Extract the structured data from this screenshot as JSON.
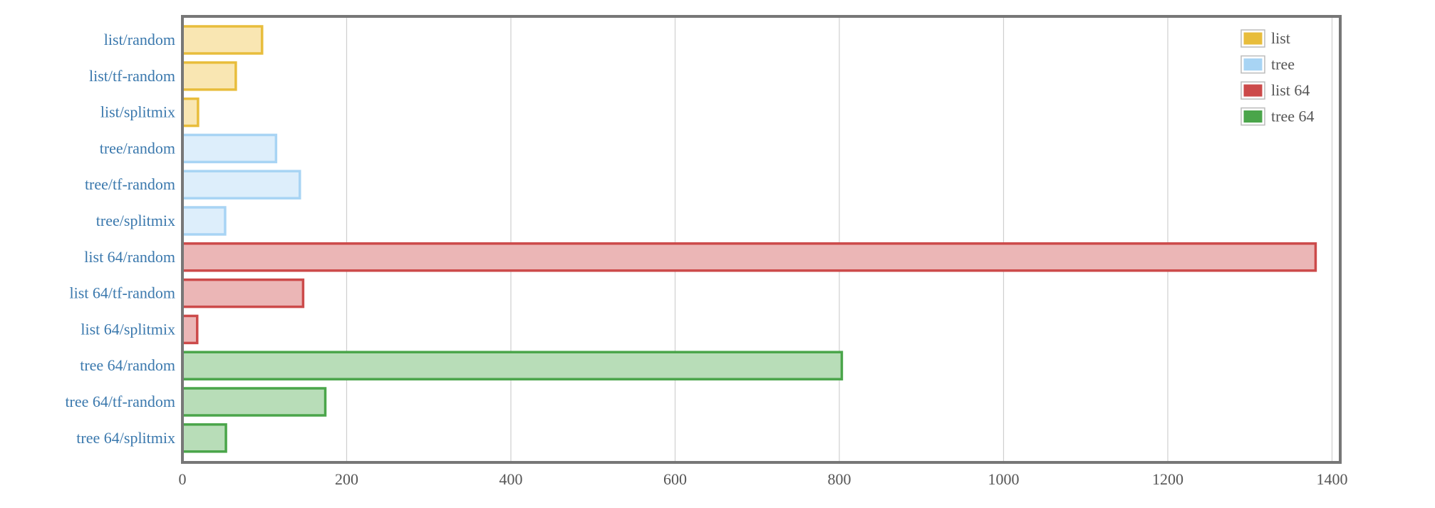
{
  "chart_data": {
    "type": "bar",
    "orientation": "horizontal",
    "categories": [
      "list/random",
      "list/tf-random",
      "list/splitmix",
      "tree/random",
      "tree/tf-random",
      "tree/splitmix",
      "list 64/random",
      "list 64/tf-random",
      "list 64/splitmix",
      "tree 64/random",
      "tree 64/tf-random",
      "tree 64/splitmix"
    ],
    "values": [
      97,
      65,
      19,
      114,
      143,
      52,
      1380,
      147,
      18,
      803,
      174,
      53
    ],
    "groups": [
      "list",
      "list",
      "list",
      "tree",
      "tree",
      "tree",
      "list 64",
      "list 64",
      "list 64",
      "tree 64",
      "tree 64",
      "tree 64"
    ],
    "series": [
      {
        "name": "list",
        "stroke": "#e8bd3c",
        "fill": "#f9e6b2",
        "swatch": "#e8bd3c"
      },
      {
        "name": "tree",
        "stroke": "#a8d4f4",
        "fill": "#ddeefb",
        "swatch": "#a8d4f4"
      },
      {
        "name": "list 64",
        "stroke": "#cc4a4a",
        "fill": "#ebb6b6",
        "swatch": "#cc4a4a"
      },
      {
        "name": "tree 64",
        "stroke": "#4aa54a",
        "fill": "#b8ddb8",
        "swatch": "#4aa54a"
      }
    ],
    "xlim": [
      0,
      1410
    ],
    "xticks": [
      0,
      200,
      400,
      600,
      800,
      1000,
      1200,
      1400
    ],
    "title": "",
    "xlabel": "",
    "ylabel": "",
    "grid": true,
    "legend_position": "top-right"
  }
}
